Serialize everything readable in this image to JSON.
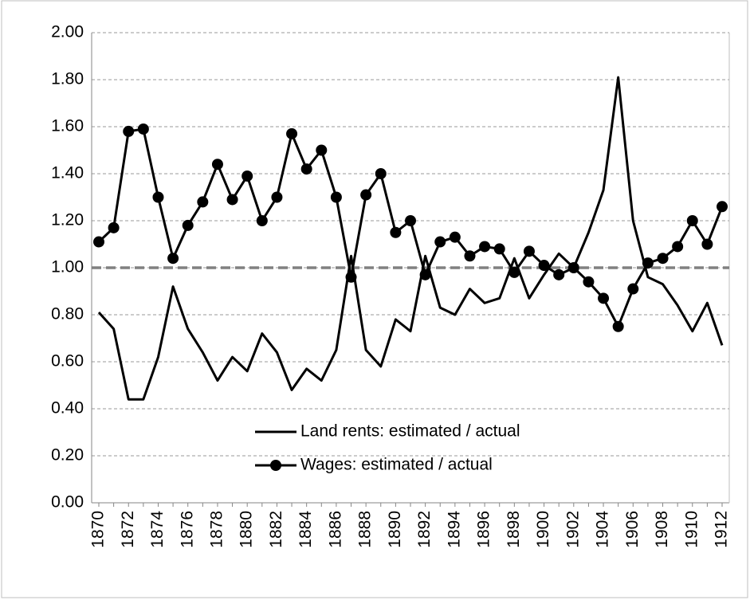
{
  "chart_data": {
    "type": "line",
    "categories": [
      "1870",
      null,
      "1872",
      null,
      "1874",
      null,
      "1876",
      null,
      "1878",
      null,
      "1880",
      null,
      "1882",
      null,
      "1884",
      null,
      "1886",
      null,
      "1888",
      null,
      "1890",
      null,
      "1892",
      null,
      "1894",
      null,
      "1896",
      null,
      "1898",
      null,
      "1900",
      null,
      "1902",
      null,
      "1904",
      null,
      "1906",
      null,
      "1908",
      null,
      "1910",
      null,
      "1912"
    ],
    "series": [
      {
        "name": "Land rents: estimated / actual",
        "color": "#000000",
        "marker": false,
        "values": [
          0.81,
          0.74,
          0.44,
          0.44,
          0.62,
          0.92,
          0.74,
          0.64,
          0.52,
          0.62,
          0.56,
          0.72,
          0.64,
          0.48,
          0.57,
          0.52,
          0.65,
          1.05,
          0.65,
          0.58,
          0.78,
          0.73,
          1.05,
          0.83,
          0.8,
          0.91,
          0.85,
          0.87,
          1.04,
          0.87,
          0.97,
          1.06,
          1.0,
          1.15,
          1.33,
          1.81,
          1.2,
          0.96,
          0.93,
          0.84,
          0.73,
          0.85,
          0.67
        ]
      },
      {
        "name": "Wages: estimated / actual",
        "color": "#000000",
        "marker": true,
        "values": [
          1.11,
          1.17,
          1.58,
          1.59,
          1.3,
          1.04,
          1.18,
          1.28,
          1.44,
          1.29,
          1.39,
          1.2,
          1.3,
          1.57,
          1.42,
          1.5,
          1.3,
          0.96,
          1.31,
          1.4,
          1.15,
          1.2,
          0.97,
          1.11,
          1.13,
          1.05,
          1.09,
          1.08,
          0.98,
          1.07,
          1.01,
          0.97,
          1.0,
          0.94,
          0.87,
          0.75,
          0.91,
          1.02,
          1.04,
          1.09,
          1.2,
          1.1,
          1.26
        ]
      }
    ],
    "reference_line": {
      "value": 1,
      "color": "#808080"
    },
    "ylim": [
      0,
      2
    ],
    "yticks": [
      {
        "value": 0,
        "label": "0.00"
      },
      {
        "value": 0.2,
        "label": "0.20"
      },
      {
        "value": 0.4,
        "label": "0.40"
      },
      {
        "value": 0.6,
        "label": "0.60"
      },
      {
        "value": 0.8,
        "label": "0.80"
      },
      {
        "value": 1,
        "label": "1.00"
      },
      {
        "value": 1.2,
        "label": "1.20"
      },
      {
        "value": 1.4,
        "label": "1.40"
      },
      {
        "value": 1.6,
        "label": "1.60"
      },
      {
        "value": 1.8,
        "label": "1.80"
      },
      {
        "value": 2,
        "label": "2.00"
      }
    ],
    "grid": true
  }
}
